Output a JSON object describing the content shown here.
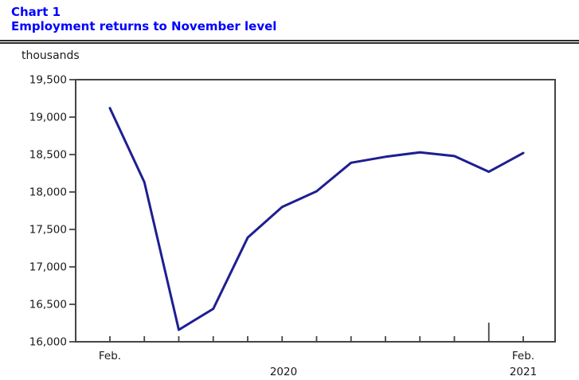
{
  "header": {
    "chart_label": "Chart 1",
    "title": "Employment returns to November level"
  },
  "theme": {
    "title_color": "#0000ff",
    "line_color": "#1e1e91",
    "frame_color": "#454547",
    "text_color": "#1a1a1a"
  },
  "chart_data": {
    "type": "line",
    "title": "Employment returns to November level",
    "units_label": "thousands",
    "x": [
      "Feb. 2020",
      "Mar. 2020",
      "Apr. 2020",
      "May 2020",
      "Jun. 2020",
      "Jul. 2020",
      "Aug. 2020",
      "Sep. 2020",
      "Oct. 2020",
      "Nov. 2020",
      "Dec. 2020",
      "Jan. 2021",
      "Feb. 2021"
    ],
    "values": [
      19120,
      18130,
      16160,
      16440,
      17390,
      17800,
      18010,
      18390,
      18470,
      18530,
      18480,
      18270,
      18520
    ],
    "ylim": [
      16000,
      19500
    ],
    "ytick_step": 500,
    "ytick_labels": [
      "19,500",
      "19,000",
      "18,500",
      "18,000",
      "17,500",
      "17,000",
      "16,500",
      "16,000"
    ],
    "x_axis_labels": {
      "start_month": "Feb.",
      "start_year": "2020",
      "end_month": "Feb.",
      "end_year": "2021"
    },
    "grid": false,
    "legend": null
  }
}
